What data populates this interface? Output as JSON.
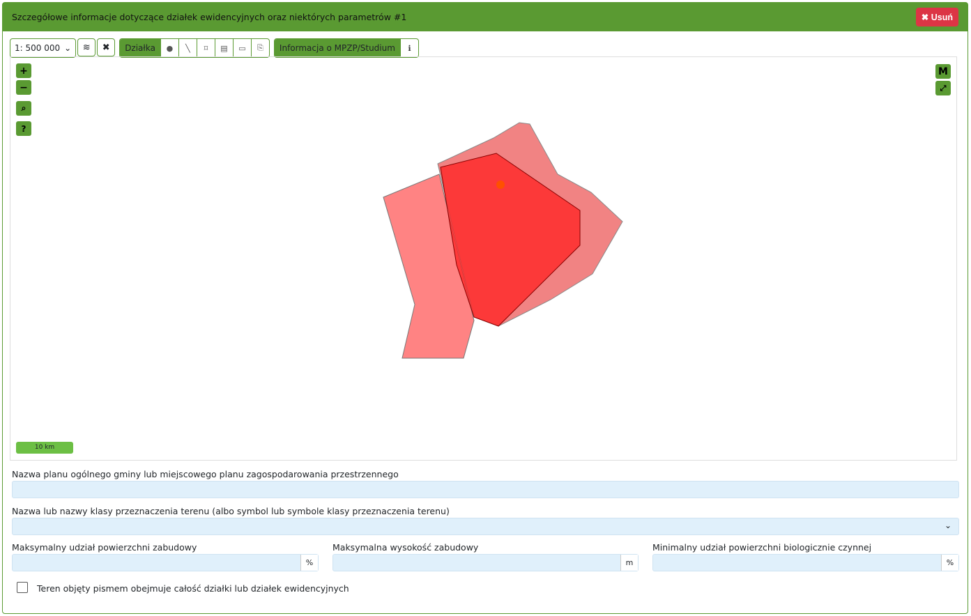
{
  "header": {
    "title": "Szczegółowe informacje dotyczące działek ewidencyjnych oraz niektórych parametrów #1",
    "delete_label": "Usuń"
  },
  "toolbar": {
    "scale": "1: 500 000",
    "dzialka_label": "Działka",
    "mpzp_label": "Informacja o MPZP/Studium"
  },
  "map": {
    "scale_bar": "10 km",
    "m_button": "M",
    "polygon_color": "#ff0000"
  },
  "form": {
    "plan_name_label": "Nazwa planu ogólnego gminy lub miejscowego planu zagospodarowania przestrzennego",
    "plan_name_value": "",
    "class_label": "Nazwa lub nazwy klasy przeznaczenia terenu (albo symbol lub symbole klasy przeznaczenia terenu)",
    "class_value": "",
    "max_area_label": "Maksymalny udział powierzchni zabudowy",
    "max_area_unit": "%",
    "max_height_label": "Maksymalna wysokość zabudowy",
    "max_height_unit": "m",
    "min_bio_label": "Minimalny udział powierzchni biologicznie czynnej",
    "min_bio_unit": "%",
    "whole_parcel_label": "Teren objęty pismem obejmuje całość działki lub działek ewidencyjnych",
    "whole_parcel_checked": false
  }
}
